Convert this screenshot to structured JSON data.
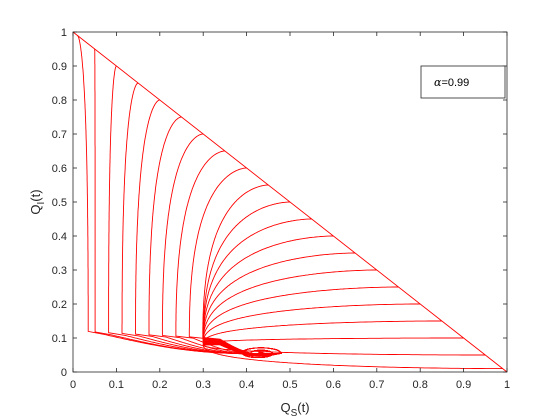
{
  "chart_data": {
    "type": "line",
    "title": "",
    "xlabel": {
      "base": "Q",
      "sub": "S",
      "suffix": "(t)"
    },
    "ylabel": {
      "base": "Q",
      "sub": "I",
      "suffix": "(t)"
    },
    "xlim": [
      0,
      1
    ],
    "ylim": [
      0,
      1
    ],
    "xticks": [
      "0",
      "0.1",
      "0.2",
      "0.3",
      "0.4",
      "0.5",
      "0.6",
      "0.7",
      "0.8",
      "0.9",
      "1"
    ],
    "yticks": [
      "0",
      "0.1",
      "0.2",
      "0.3",
      "0.4",
      "0.5",
      "0.6",
      "0.7",
      "0.8",
      "0.9",
      "1"
    ],
    "grid": false,
    "legend": {
      "symbol": "α",
      "text": "=0.99",
      "placement": "top-right"
    },
    "line_color": "#ff0000",
    "series_description": "trajectories starting on the line Q_S + Q_I = 1 and spiralling to the equilibrium",
    "initial_conditions_qs": [
      0.01,
      0.05,
      0.1,
      0.15,
      0.2,
      0.25,
      0.3,
      0.35,
      0.4,
      0.45,
      0.5,
      0.55,
      0.6,
      0.65,
      0.7,
      0.75,
      0.8,
      0.85,
      0.9,
      0.95,
      0.99
    ],
    "equilibrium": {
      "qs": 0.43,
      "qi": 0.055
    },
    "samples": [
      {
        "start": [
          0.05,
          0.95
        ],
        "points": [
          [
            0.05,
            0.95
          ],
          [
            0.04,
            0.7
          ],
          [
            0.04,
            0.45
          ],
          [
            0.06,
            0.25
          ],
          [
            0.12,
            0.12
          ],
          [
            0.25,
            0.06
          ],
          [
            0.43,
            0.055
          ]
        ]
      },
      {
        "start": [
          0.3,
          0.7
        ],
        "points": [
          [
            0.3,
            0.7
          ],
          [
            0.22,
            0.55
          ],
          [
            0.18,
            0.35
          ],
          [
            0.2,
            0.2
          ],
          [
            0.28,
            0.1
          ],
          [
            0.43,
            0.055
          ]
        ]
      },
      {
        "start": [
          0.6,
          0.4
        ],
        "points": [
          [
            0.6,
            0.4
          ],
          [
            0.45,
            0.35
          ],
          [
            0.3,
            0.26
          ],
          [
            0.27,
            0.15
          ],
          [
            0.33,
            0.08
          ],
          [
            0.43,
            0.055
          ]
        ]
      },
      {
        "start": [
          0.99,
          0.01
        ],
        "points": [
          [
            0.99,
            0.01
          ],
          [
            0.8,
            0.13
          ],
          [
            0.6,
            0.19
          ],
          [
            0.45,
            0.18
          ],
          [
            0.37,
            0.13
          ],
          [
            0.36,
            0.09
          ],
          [
            0.43,
            0.055
          ]
        ]
      }
    ]
  }
}
